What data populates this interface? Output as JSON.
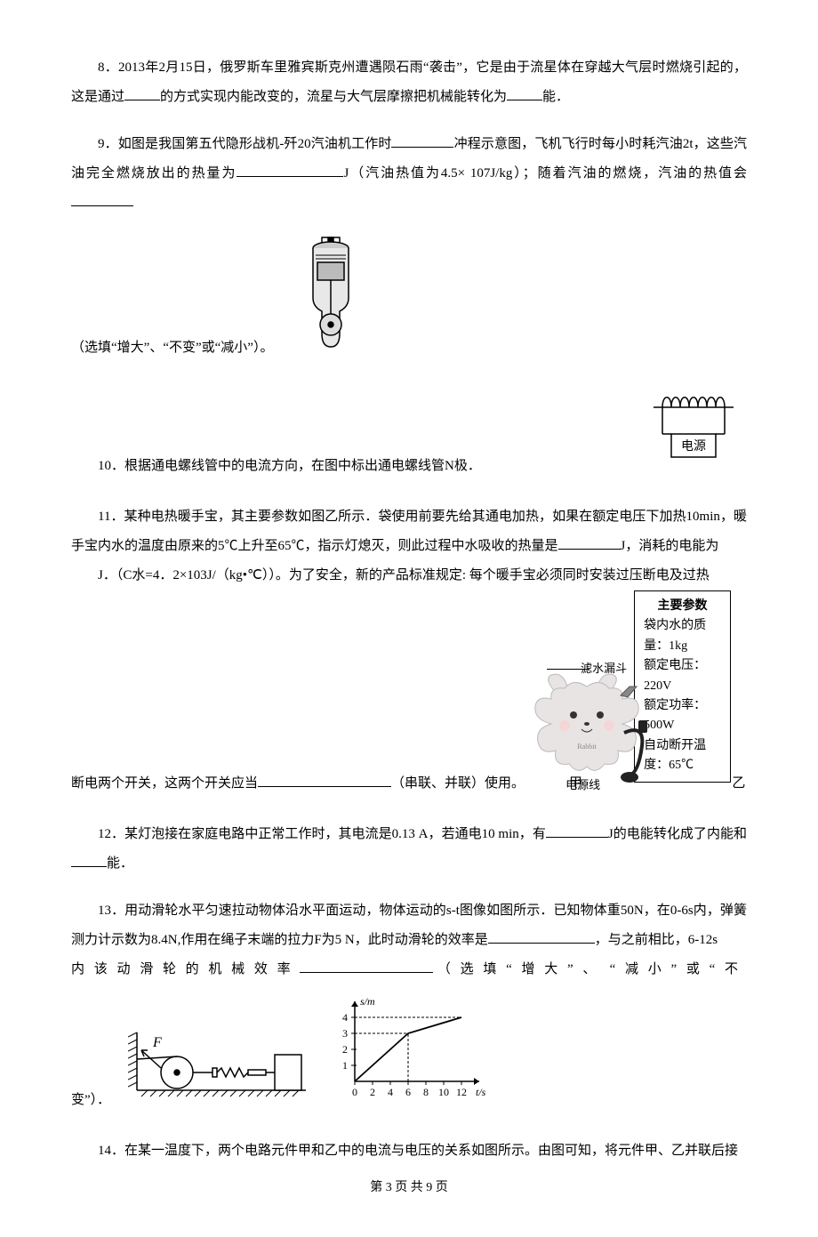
{
  "q8": {
    "t1": "8．2013年2月15日，俄罗斯车里雅宾斯克州遭遇陨石雨“袭击”，它是由于流星体在穿越大气层时燃烧引起的，这是通过",
    "t2": "的方式实现内能改变的，流星与大气层摩擦把机械能转化为",
    "t3": "能．"
  },
  "q9": {
    "t1": "9．如图是我国第五代隐形战机-歼20汽油机工作时",
    "t2": "冲程示意图，飞机飞行时每小时耗汽油2t，这些汽油完全燃烧放出的热量为",
    "t3": "J（汽油热值为4.5× 107J/kg）；随着汽油的燃烧，汽油的热值会",
    "t4": "（选填“增大”、“不变”或“减小”）。",
    "engine": {
      "stroke": "#000",
      "fill": "none",
      "bg": "#fff",
      "piston_fill": "#555",
      "cylinder_fill": "#888"
    }
  },
  "q10": {
    "t1": "10．根据通电螺线管中的电流方向，在图中标出通电螺线管N极．",
    "box_label": "电源",
    "colors": {
      "stroke": "#000",
      "bg": "#fff"
    }
  },
  "q11": {
    "t1": "11．某种电热暖手宝，其主要参数如图乙所示．袋使用前要先给其通电加热，如果在额定电压下加热10min，暖手宝内水的温度由原来的5℃上升至65℃，指示灯熄灭，则此过程中水吸收的热量是",
    "t2": "J，消耗的电能为",
    "t3": "J．（C水=4．2×103J/（kg•℃））。为了安全，新的产品标准规定: 每个暖手宝必须同时安装过压断电及过热断电两个开关，这两个开关应当",
    "t4": "（串联、并联）使用。",
    "labels": {
      "funnel": "滤水漏斗",
      "cord": "电源线",
      "jia": "甲",
      "yi": "乙"
    },
    "specs_title": "主要参数",
    "specs": [
      "袋内水的质量：1kg",
      "额定电压：220V",
      "额定功率：500W",
      "自动断开温度：65℃"
    ],
    "rabbit_label": "Rabbit",
    "colors": {
      "body": "#e8e4e4",
      "outline": "#bbb",
      "cheek": "#f5d5d5",
      "cord": "#222",
      "box_border": "#000",
      "bg": "#fff"
    }
  },
  "q12": {
    "t1": "12．某灯泡接在家庭电路中正常工作时，其电流是0.13 A，若通电10 min，有",
    "t2": "J的电能转化成了内能和",
    "t3": "能．"
  },
  "q13": {
    "t1": "13．用动滑轮水平匀速拉动物体沿水平面运动，物体运动的s-t图像如图所示．已知物体重50N，在0-6s内，弹簧测力计示数为8.4N,作用在绳子末端的拉力F为5 N，此时动滑轮的效率是",
    "t2": "，与之前相比，6-12s",
    "t3_spaced": "内该动滑轮的机械效率",
    "t3b_spaced": "（选填“增大”、",
    "t3c_spaced": "“减小”或“不",
    "t4": "变”）．",
    "pulley": {
      "F_label": "F",
      "colors": {
        "stroke": "#000",
        "hatch": "#000",
        "bg": "#fff"
      }
    },
    "graph": {
      "ylabel": "s/m",
      "xlabel": "t/s",
      "y_ticks": [
        1,
        2,
        3,
        4
      ],
      "x_ticks": [
        0,
        2,
        4,
        6,
        8,
        10,
        12
      ],
      "x_tick_labels": [
        "0",
        "2",
        "4",
        "6",
        "8",
        "10",
        "12"
      ],
      "line": [
        [
          0,
          0
        ],
        [
          6,
          3
        ],
        [
          12,
          4
        ]
      ],
      "xlim": [
        0,
        14
      ],
      "ylim": [
        0,
        5
      ],
      "colors": {
        "axis": "#000",
        "line": "#000",
        "bg": "#fff"
      },
      "font_size": 12
    }
  },
  "q14": {
    "t1": "14．在某一温度下，两个电路元件甲和乙中的电流与电压的关系如图所示。由图可知，将元件甲、乙并联后接"
  },
  "footer": "第 3 页 共 9 页"
}
